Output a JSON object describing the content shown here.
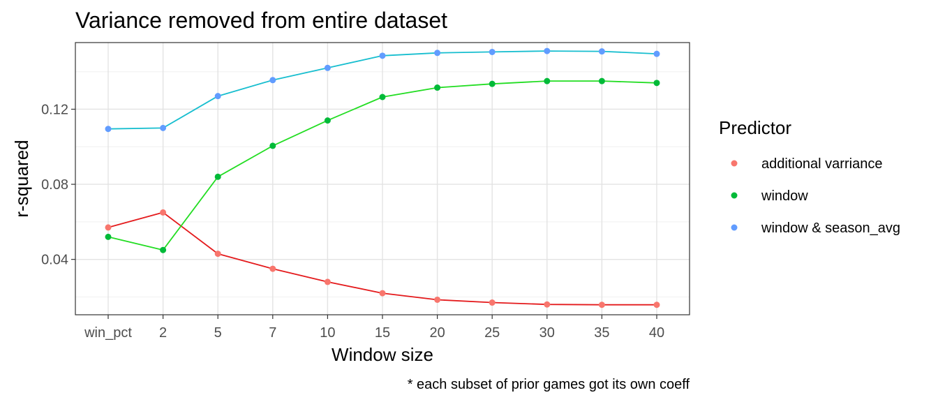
{
  "chart_data": {
    "type": "line",
    "title": "Variance removed from entire dataset",
    "xlabel": "Window size",
    "ylabel": "r-squared",
    "caption": "* each subset of prior games got its own coeff",
    "categories": [
      "win_pct",
      "2",
      "5",
      "7",
      "10",
      "15",
      "20",
      "25",
      "30",
      "35",
      "40"
    ],
    "yticks": [
      "0.04",
      "0.08",
      "0.12"
    ],
    "ylim": [
      0.0105,
      0.1555
    ],
    "grid": true,
    "legend": {
      "title": "Predictor",
      "position": "right"
    },
    "series": [
      {
        "name": "additional varriance",
        "point_color": "#F8766D",
        "line_color": "#E41A1C",
        "values": [
          0.057,
          0.065,
          0.043,
          0.035,
          0.028,
          0.022,
          0.0185,
          0.017,
          0.016,
          0.0158,
          0.0158
        ]
      },
      {
        "name": "window",
        "point_color": "#00BA38",
        "line_color": "#22DD22",
        "values": [
          0.052,
          0.045,
          0.084,
          0.1005,
          0.114,
          0.1265,
          0.1315,
          0.1335,
          0.135,
          0.135,
          0.134
        ]
      },
      {
        "name": "window & season_avg",
        "point_color": "#619CFF",
        "line_color": "#17BECF",
        "values": [
          0.1095,
          0.11,
          0.127,
          0.1355,
          0.142,
          0.1485,
          0.15,
          0.1505,
          0.151,
          0.1508,
          0.1495
        ]
      }
    ]
  }
}
